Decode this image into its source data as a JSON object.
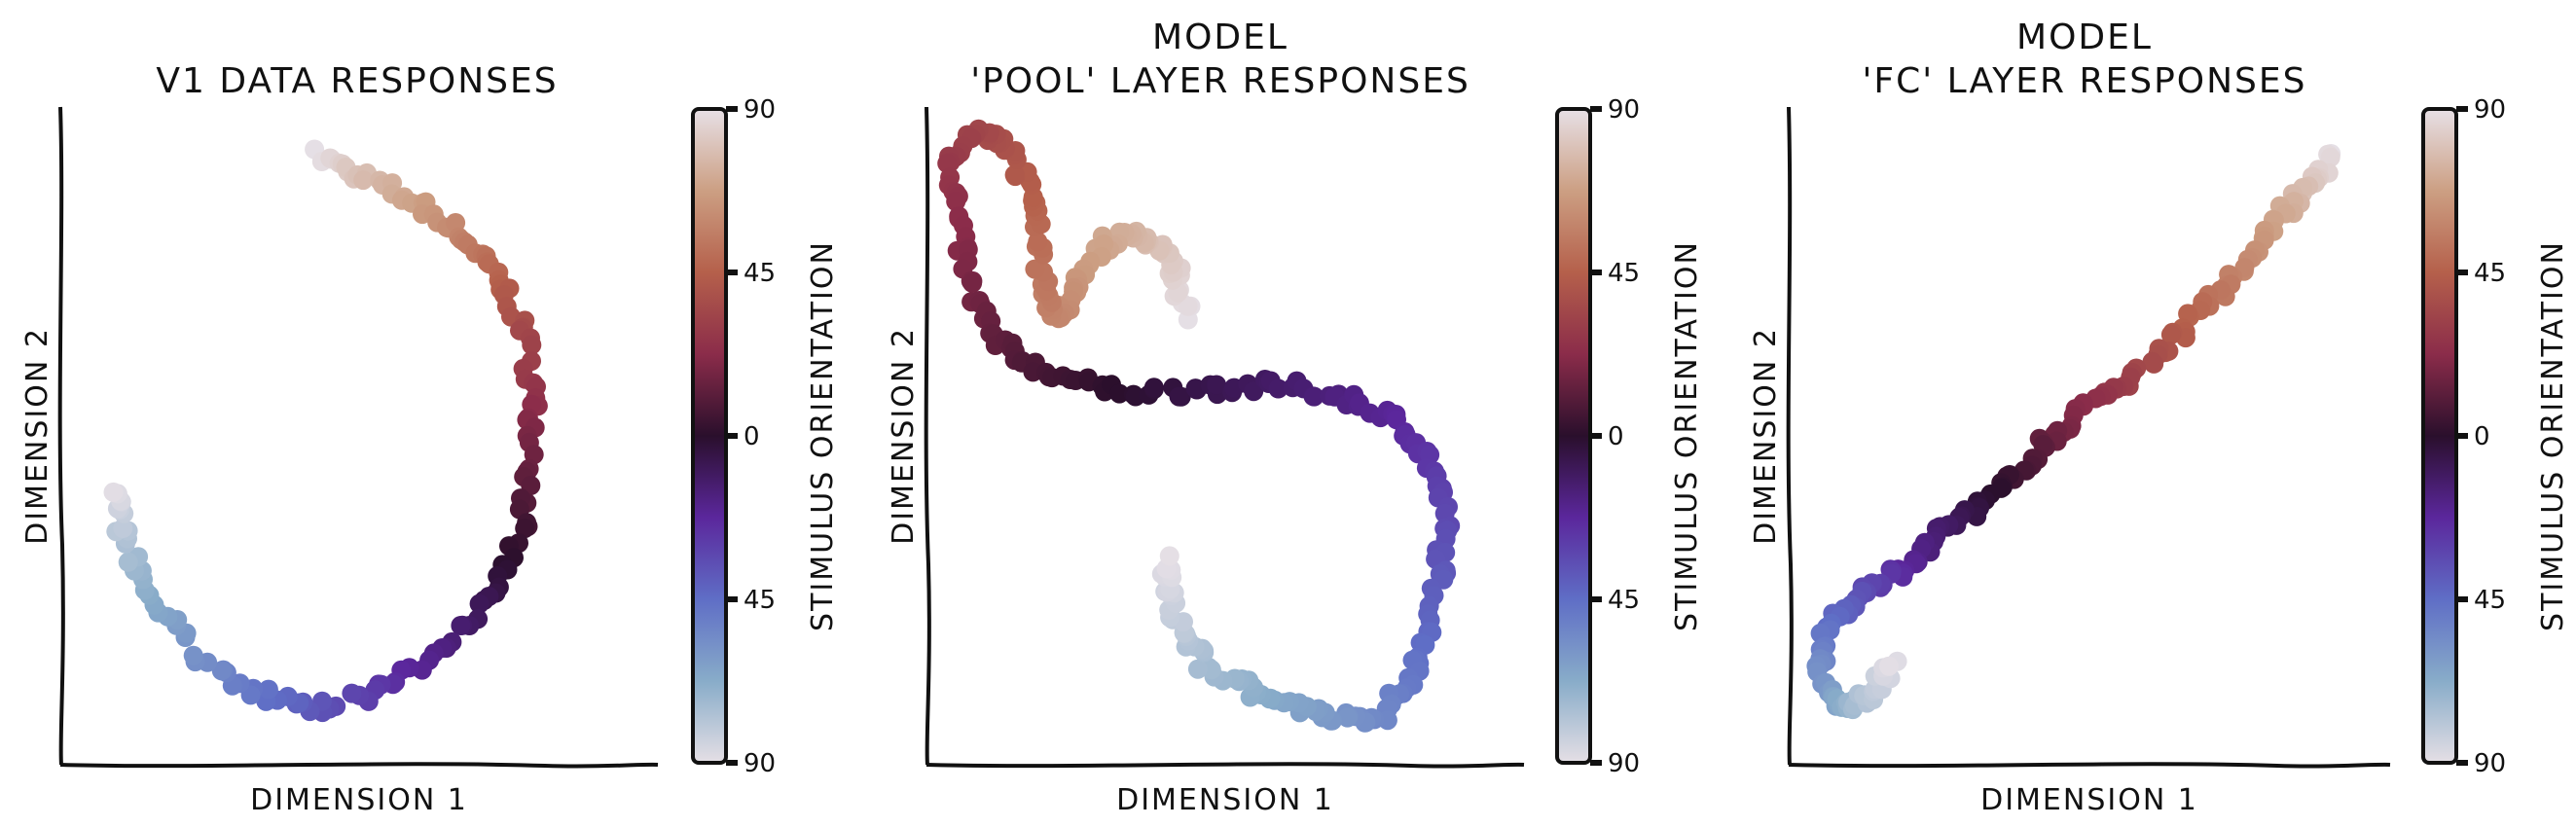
{
  "chart_data": [
    {
      "type": "scatter",
      "title": "V1 DATA RESPONSES",
      "title_line2": "",
      "xlabel": "DIMENSION 1",
      "ylabel": "DIMENSION 2",
      "colorbar": {
        "label": "STIMULUS ORIENTATION",
        "ticks": [
          "90",
          "45",
          "0",
          "45",
          "90"
        ]
      },
      "xlim": [
        0,
        100
      ],
      "ylim": [
        0,
        100
      ],
      "curve": [
        [
          44,
          94
        ],
        [
          50,
          91
        ],
        [
          60,
          87
        ],
        [
          68,
          82
        ],
        [
          74,
          76
        ],
        [
          79,
          68
        ],
        [
          81,
          58
        ],
        [
          81,
          47
        ],
        [
          79,
          36
        ],
        [
          74,
          26
        ],
        [
          66,
          18
        ],
        [
          55,
          11
        ],
        [
          44,
          8
        ],
        [
          33,
          10
        ],
        [
          22,
          17
        ],
        [
          13,
          26
        ],
        [
          9,
          36
        ],
        [
          8,
          43
        ]
      ]
    },
    {
      "type": "scatter",
      "title": "MODEL",
      "title_line2": "'POOL' LAYER RESPONSES",
      "xlabel": "DIMENSION 1",
      "ylabel": "DIMENSION 2",
      "colorbar": {
        "label": "STIMULUS ORIENTATION",
        "ticks": [
          "90",
          "45",
          "0",
          "45",
          "90"
        ]
      },
      "xlim": [
        0,
        100
      ],
      "ylim": [
        0,
        100
      ],
      "curve": [
        [
          44,
          69
        ],
        [
          42,
          76
        ],
        [
          39,
          80
        ],
        [
          34,
          82
        ],
        [
          29,
          80
        ],
        [
          25,
          74
        ],
        [
          22,
          69
        ],
        [
          19,
          73
        ],
        [
          18,
          82
        ],
        [
          16,
          90
        ],
        [
          12,
          96
        ],
        [
          7,
          98
        ],
        [
          3,
          93
        ],
        [
          4,
          84
        ],
        [
          6,
          74
        ],
        [
          10,
          66
        ],
        [
          17,
          61
        ],
        [
          27,
          58
        ],
        [
          38,
          57
        ],
        [
          50,
          58
        ],
        [
          62,
          58
        ],
        [
          73,
          56
        ],
        [
          82,
          52
        ],
        [
          87,
          45
        ],
        [
          89,
          37
        ],
        [
          88,
          28
        ],
        [
          86,
          19
        ],
        [
          83,
          12
        ],
        [
          78,
          7
        ],
        [
          71,
          6
        ],
        [
          63,
          8
        ],
        [
          55,
          11
        ],
        [
          47,
          15
        ],
        [
          43,
          20
        ],
        [
          41,
          26
        ],
        [
          40,
          32
        ]
      ]
    },
    {
      "type": "scatter",
      "title": "MODEL",
      "title_line2": "'FC' LAYER RESPONSES",
      "xlabel": "DIMENSION 1",
      "ylabel": "DIMENSION 2",
      "colorbar": {
        "label": "STIMULUS ORIENTATION",
        "ticks": [
          "90",
          "45",
          "0",
          "45",
          "90"
        ]
      },
      "xlim": [
        0,
        100
      ],
      "ylim": [
        0,
        100
      ],
      "curve": [
        [
          93,
          94
        ],
        [
          89,
          90
        ],
        [
          85,
          86
        ],
        [
          80,
          80
        ],
        [
          75,
          74
        ],
        [
          69,
          69
        ],
        [
          63,
          63
        ],
        [
          56,
          58
        ],
        [
          49,
          54
        ],
        [
          43,
          49
        ],
        [
          37,
          44
        ],
        [
          31,
          39
        ],
        [
          25,
          35
        ],
        [
          19,
          30
        ],
        [
          14,
          27
        ],
        [
          9,
          24
        ],
        [
          5,
          20
        ],
        [
          4,
          14
        ],
        [
          6,
          9
        ],
        [
          10,
          8
        ],
        [
          14,
          11
        ],
        [
          17,
          15
        ]
      ]
    }
  ]
}
